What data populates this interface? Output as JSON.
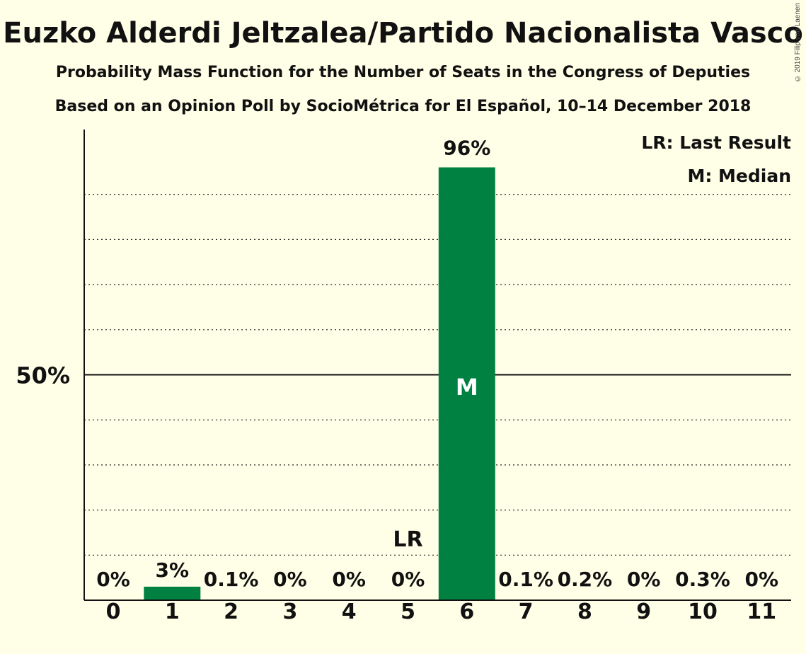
{
  "title": "Euzko Alderdi Jeltzalea/Partido Nacionalista Vasco",
  "subtitle1": "Probability Mass Function for the Number of Seats in the Congress of Deputies",
  "subtitle2": "Based on an Opinion Poll by SocioMétrica for El Español, 10–14 December 2018",
  "copyright": "© 2019 Filip van Laenen",
  "legend": {
    "lr": "LR: Last Result",
    "m": "M: Median"
  },
  "colors": {
    "bar": "#008142",
    "background": "#FFFEE6"
  },
  "chart_data": {
    "type": "bar",
    "categories": [
      "0",
      "1",
      "2",
      "3",
      "4",
      "5",
      "6",
      "7",
      "8",
      "9",
      "10",
      "11"
    ],
    "values": [
      0,
      3,
      0.1,
      0,
      0,
      0,
      96,
      0.1,
      0.2,
      0,
      0.3,
      0
    ],
    "value_labels": [
      "0%",
      "3%",
      "0.1%",
      "0%",
      "0%",
      "0%",
      "96%",
      "0.1%",
      "0.2%",
      "0%",
      "0.3%",
      "0%"
    ],
    "ylim": [
      0,
      100
    ],
    "ytick_label": "50%",
    "ytick_value": 50,
    "gridlines": [
      10,
      20,
      30,
      40,
      60,
      70,
      80,
      90
    ],
    "last_result_seat": 5,
    "last_result_marker": "LR",
    "median_seat": 6,
    "median_marker": "M",
    "legend_position": "top-right"
  }
}
